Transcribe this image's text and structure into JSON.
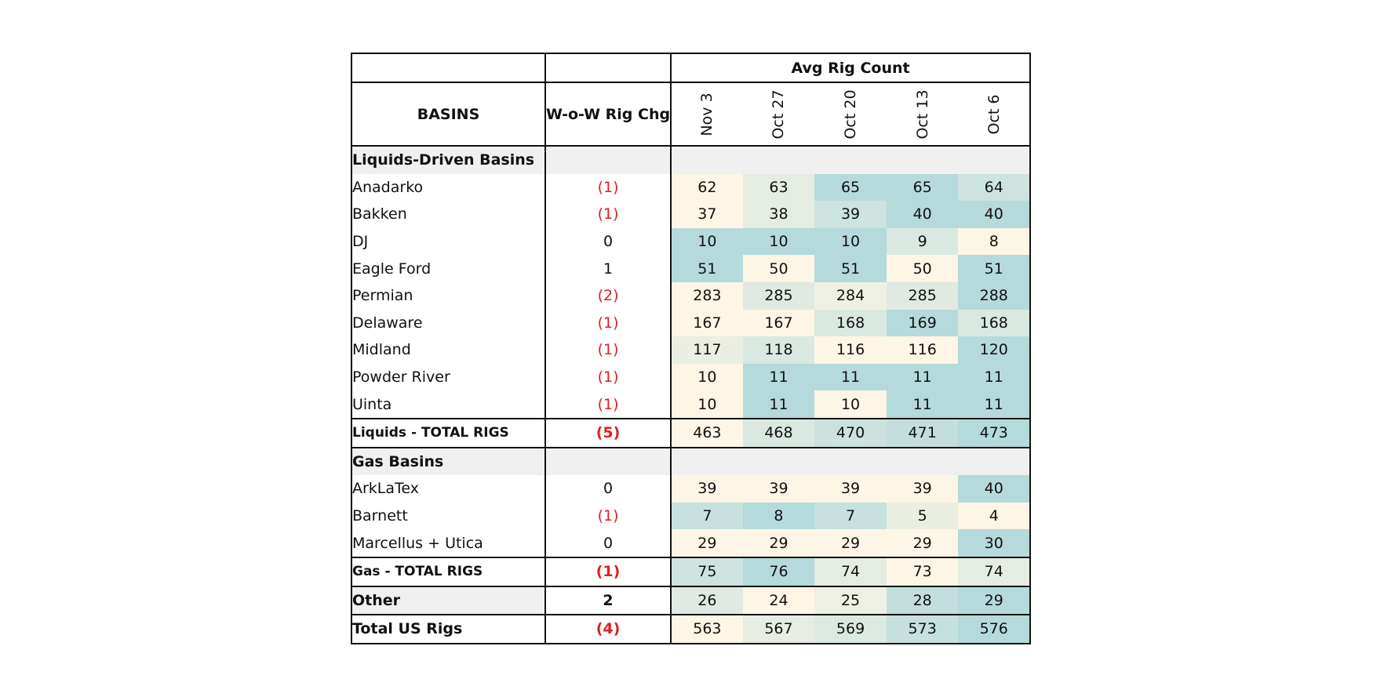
{
  "chart_data": {
    "type": "table",
    "headers": {
      "group": "Avg Rig Count",
      "basins": "BASINS",
      "wow": "W-o-W Rig Chg",
      "dates": [
        "Nov 3",
        "Oct 27",
        "Oct 20",
        "Oct 13",
        "Oct 6"
      ]
    },
    "colors": {
      "low": "#fdf5e6",
      "high": "#b5dadb",
      "negative": "#e02020",
      "section": "#f0f0f0"
    },
    "rows": [
      {
        "kind": "section",
        "name": "Liquids-Driven Basins"
      },
      {
        "kind": "data",
        "name": "Anadarko",
        "wow": "(1)",
        "neg": true,
        "values": [
          62,
          63,
          65,
          65,
          64
        ]
      },
      {
        "kind": "data",
        "name": "Bakken",
        "wow": "(1)",
        "neg": true,
        "values": [
          37,
          38,
          39,
          40,
          40
        ]
      },
      {
        "kind": "data",
        "name": "DJ",
        "wow": "0",
        "neg": false,
        "values": [
          10,
          10,
          10,
          9,
          8
        ]
      },
      {
        "kind": "data",
        "name": "Eagle Ford",
        "wow": "1",
        "neg": false,
        "values": [
          51,
          50,
          51,
          50,
          51
        ]
      },
      {
        "kind": "data",
        "name": "Permian",
        "wow": "(2)",
        "neg": true,
        "values": [
          283,
          285,
          284,
          285,
          288
        ]
      },
      {
        "kind": "data",
        "name": "Delaware",
        "indent": true,
        "wow": "(1)",
        "neg": true,
        "values": [
          167,
          167,
          168,
          169,
          168
        ]
      },
      {
        "kind": "data",
        "name": "Midland",
        "indent": true,
        "wow": "(1)",
        "neg": true,
        "values": [
          117,
          118,
          116,
          116,
          120
        ]
      },
      {
        "kind": "data",
        "name": "Powder River",
        "wow": "(1)",
        "neg": true,
        "values": [
          10,
          11,
          11,
          11,
          11
        ]
      },
      {
        "kind": "data",
        "name": "Uinta",
        "wow": "(1)",
        "neg": true,
        "values": [
          10,
          11,
          10,
          11,
          11
        ]
      },
      {
        "kind": "total",
        "name": "Liquids - TOTAL RIGS",
        "small": true,
        "wow": "(5)",
        "neg": true,
        "values": [
          463,
          468,
          470,
          471,
          473
        ]
      },
      {
        "kind": "section",
        "name": "Gas Basins"
      },
      {
        "kind": "data",
        "name": "ArkLaTex",
        "indent": true,
        "wow": "0",
        "neg": false,
        "values": [
          39,
          39,
          39,
          39,
          40
        ]
      },
      {
        "kind": "data",
        "name": "Barnett",
        "indent": true,
        "wow": "(1)",
        "neg": true,
        "values": [
          7,
          8,
          7,
          5,
          4
        ]
      },
      {
        "kind": "data",
        "name": "Marcellus + Utica",
        "indent": true,
        "wow": "0",
        "neg": false,
        "values": [
          29,
          29,
          29,
          29,
          30
        ]
      },
      {
        "kind": "total",
        "name": "Gas - TOTAL RIGS",
        "small": true,
        "wow": "(1)",
        "neg": true,
        "values": [
          75,
          76,
          74,
          73,
          74
        ]
      },
      {
        "kind": "other",
        "name": "Other",
        "wow": "2",
        "neg": false,
        "values": [
          26,
          24,
          25,
          28,
          29
        ]
      },
      {
        "kind": "total",
        "name": "Total US Rigs",
        "small": false,
        "wow": "(4)",
        "neg": true,
        "values": [
          563,
          567,
          569,
          573,
          576
        ]
      }
    ]
  }
}
